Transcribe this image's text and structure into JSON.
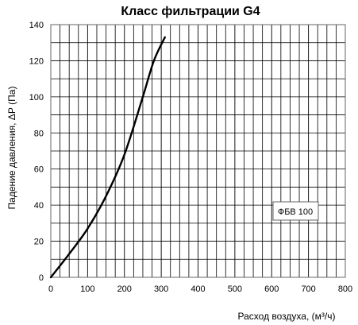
{
  "chart_data": {
    "type": "line",
    "title": "Класс фильтрации G4",
    "xlabel": "Расход воздуха, (м³/ч)",
    "ylabel": "Падение давления, ΔР (Па)",
    "xlim": [
      0,
      800
    ],
    "ylim": [
      0,
      140
    ],
    "x_ticks": [
      "0",
      "100",
      "200",
      "300",
      "400",
      "500",
      "600",
      "700",
      "800"
    ],
    "y_ticks": [
      "0",
      "20",
      "40",
      "60",
      "80",
      "100",
      "120",
      "140"
    ],
    "grid": true,
    "legend_position": "right",
    "series": [
      {
        "name": "ФБВ 100",
        "x": [
          0,
          50,
          100,
          150,
          200,
          250,
          280,
          310
        ],
        "y": [
          0,
          13,
          27,
          45,
          68,
          100,
          120,
          133
        ],
        "color": "#000000"
      }
    ]
  }
}
